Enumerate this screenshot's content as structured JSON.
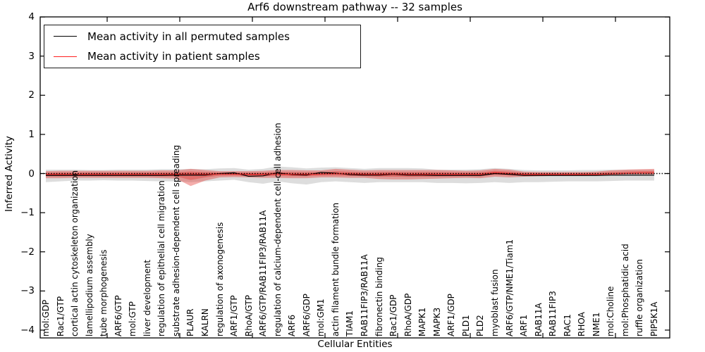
{
  "title": "Arf6 downstream pathway -- 32 samples",
  "legend": {
    "items": [
      {
        "label": "Mean activity in all permuted samples",
        "color": "#000000"
      },
      {
        "label": "Mean activity in patient samples",
        "color": "#ff2020"
      }
    ]
  },
  "axes": {
    "ylabel": "Inferred Activity",
    "xlabel": "Cellular Entities",
    "ytick_labels": [
      "4",
      "3",
      "2",
      "1",
      "0",
      "−1",
      "−2",
      "−3",
      "−4"
    ],
    "ytick_values": [
      4,
      3,
      2,
      1,
      0,
      -1,
      -2,
      -3,
      -4
    ],
    "top_tick_x": [
      152,
      255,
      358,
      461,
      564,
      667,
      770,
      873
    ]
  },
  "chart_data": {
    "type": "line",
    "title": "Arf6 downstream pathway -- 32 samples",
    "xlabel": "Cellular Entities",
    "ylabel": "Inferred Activity",
    "ylim": [
      -4.2,
      4.0
    ],
    "grid": false,
    "legend_position": "upper left",
    "zero_line": {
      "style": "dotted",
      "color": "#000000",
      "y": 0
    },
    "categories": [
      "mol:GDP",
      "Rac1/GTP",
      "cortical actin cytoskeleton organization",
      "lamellipodium assembly",
      "tube morphogenesis",
      "ARF6/GTP",
      "mol:GTP",
      "liver development",
      "regulation of epithelial cell migration",
      "substrate adhesion-dependent cell spreading",
      "PLAUR",
      "KALRN",
      "regulation of axonogenesis",
      "ARF1/GTP",
      "RhoA/GTP",
      "ARF6/GTP/RAB11FIP3/RAB11A",
      "regulation of calcium-dependent cell-cell adhesion",
      "ARF6",
      "ARF6/GDP",
      "mol:GM1",
      "actin filament bundle formation",
      "TIAM1",
      "RAB11FIP3/RAB11A",
      "fibronectin binding",
      "Rac1/GDP",
      "RhoA/GDP",
      "MAPK1",
      "MAPK3",
      "ARF1/GDP",
      "PLD1",
      "PLD2",
      "myoblast fusion",
      "ARF6/GTP/NME1/Tiam1",
      "ARF1",
      "RAB11A",
      "RAB11FIP3",
      "RAC1",
      "RHOA",
      "NME1",
      "mol:Choline",
      "mol:Phosphatidic acid",
      "ruffle organization",
      "PIP5K1A"
    ],
    "series": [
      {
        "name": "Mean activity in all permuted samples",
        "color": "#000000",
        "values": [
          -0.05,
          -0.05,
          -0.05,
          -0.05,
          -0.05,
          -0.05,
          -0.05,
          -0.05,
          -0.05,
          -0.04,
          -0.04,
          -0.04,
          0.0,
          0.02,
          -0.07,
          -0.06,
          0.02,
          -0.03,
          -0.04,
          0.03,
          0.01,
          -0.03,
          -0.04,
          -0.04,
          -0.02,
          -0.04,
          -0.04,
          -0.05,
          -0.05,
          -0.05,
          -0.05,
          0.0,
          -0.02,
          -0.05,
          -0.05,
          -0.05,
          -0.05,
          -0.05,
          -0.05,
          -0.04,
          -0.04,
          -0.04,
          -0.04
        ]
      },
      {
        "name": "Mean activity in patient samples",
        "color": "#e62020",
        "values": [
          -0.02,
          -0.02,
          -0.02,
          -0.02,
          -0.02,
          -0.02,
          -0.02,
          -0.02,
          -0.02,
          -0.02,
          -0.01,
          -0.02,
          -0.01,
          -0.01,
          -0.02,
          -0.02,
          -0.01,
          -0.02,
          -0.02,
          -0.01,
          0.0,
          -0.01,
          -0.02,
          -0.02,
          -0.01,
          -0.02,
          -0.02,
          -0.02,
          -0.02,
          -0.02,
          -0.02,
          0.02,
          0.0,
          -0.02,
          -0.02,
          -0.02,
          -0.02,
          -0.02,
          -0.02,
          -0.01,
          0.0,
          0.01,
          0.01
        ]
      }
    ],
    "bands": [
      {
        "name": "permuted samples range",
        "color": "rgba(128,128,128,0.27)",
        "upper": [
          0.1,
          0.1,
          0.1,
          0.09,
          0.09,
          0.1,
          0.1,
          0.1,
          0.11,
          0.11,
          0.12,
          0.11,
          0.13,
          0.14,
          0.1,
          0.12,
          0.18,
          0.16,
          0.13,
          0.15,
          0.16,
          0.14,
          0.12,
          0.14,
          0.14,
          0.14,
          0.13,
          0.1,
          0.1,
          0.1,
          0.11,
          0.14,
          0.12,
          0.09,
          0.08,
          0.08,
          0.08,
          0.09,
          0.09,
          0.1,
          0.1,
          0.1,
          0.1
        ],
        "lower": [
          -0.22,
          -0.2,
          -0.18,
          -0.18,
          -0.17,
          -0.18,
          -0.18,
          -0.19,
          -0.2,
          -0.2,
          -0.22,
          -0.2,
          -0.18,
          -0.16,
          -0.22,
          -0.26,
          -0.2,
          -0.25,
          -0.28,
          -0.22,
          -0.2,
          -0.22,
          -0.24,
          -0.22,
          -0.22,
          -0.22,
          -0.22,
          -0.24,
          -0.24,
          -0.25,
          -0.24,
          -0.22,
          -0.24,
          -0.22,
          -0.22,
          -0.21,
          -0.2,
          -0.2,
          -0.2,
          -0.19,
          -0.18,
          -0.18,
          -0.18
        ]
      },
      {
        "name": "patient samples range",
        "color": "rgba(228,50,45,0.40)",
        "upper": [
          0.06,
          0.07,
          0.07,
          0.07,
          0.07,
          0.07,
          0.07,
          0.07,
          0.08,
          0.08,
          0.12,
          0.09,
          0.06,
          0.06,
          0.06,
          0.07,
          0.09,
          0.09,
          0.08,
          0.08,
          0.12,
          0.1,
          0.08,
          0.09,
          0.09,
          0.09,
          0.09,
          0.09,
          0.08,
          0.07,
          0.08,
          0.12,
          0.1,
          0.05,
          0.04,
          0.04,
          0.04,
          0.04,
          0.05,
          0.08,
          0.1,
          0.11,
          0.12
        ],
        "lower": [
          -0.12,
          -0.12,
          -0.11,
          -0.11,
          -0.11,
          -0.11,
          -0.11,
          -0.11,
          -0.12,
          -0.13,
          -0.32,
          -0.18,
          -0.1,
          -0.09,
          -0.1,
          -0.11,
          -0.11,
          -0.12,
          -0.12,
          -0.1,
          -0.1,
          -0.11,
          -0.11,
          -0.14,
          -0.15,
          -0.15,
          -0.14,
          -0.13,
          -0.12,
          -0.11,
          -0.12,
          -0.08,
          -0.1,
          -0.08,
          -0.07,
          -0.06,
          -0.06,
          -0.06,
          -0.05,
          -0.03,
          -0.02,
          -0.02,
          -0.02
        ]
      }
    ]
  }
}
